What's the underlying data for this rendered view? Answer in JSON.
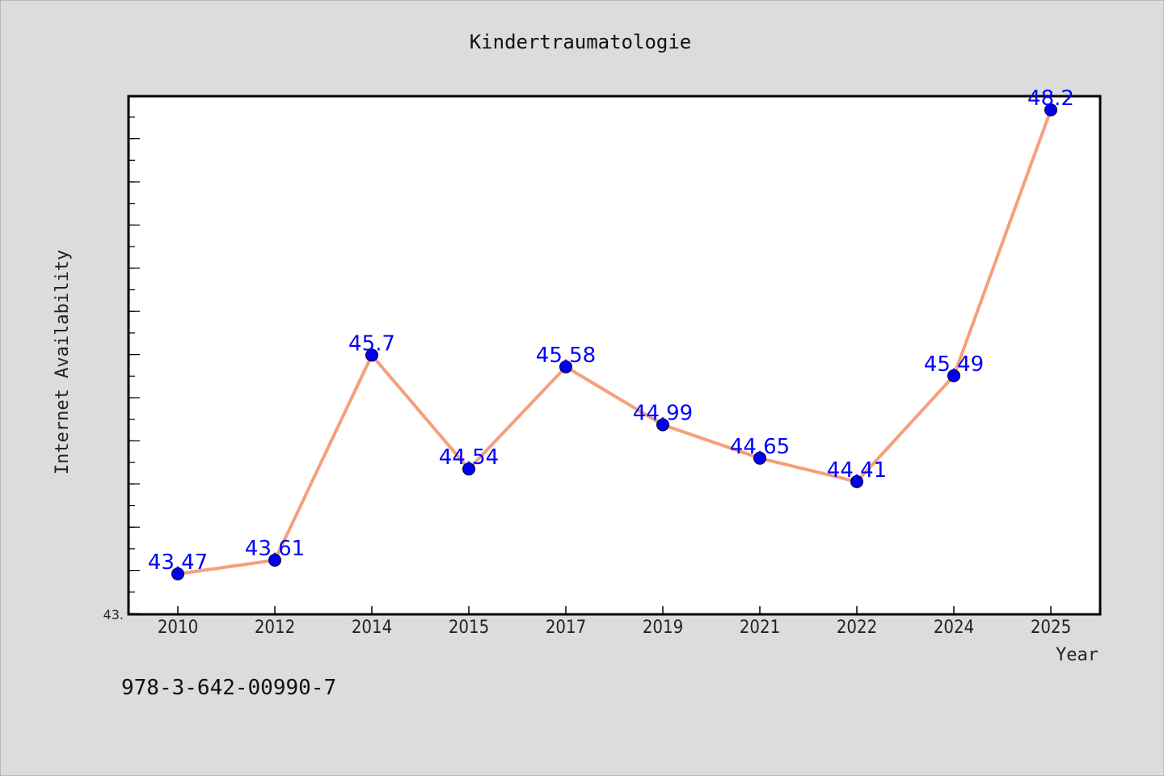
{
  "chart_data": {
    "type": "line",
    "title": "Kindertraumatologie",
    "xlabel": "Year",
    "ylabel": "Internet Availability",
    "categories": [
      "2010",
      "2012",
      "2014",
      "2015",
      "2017",
      "2019",
      "2021",
      "2022",
      "2024",
      "2025"
    ],
    "values": [
      43.47,
      43.61,
      45.7,
      44.54,
      45.58,
      44.99,
      44.65,
      44.41,
      45.49,
      48.2
    ],
    "data_labels": [
      "43.47",
      "43.61",
      "45.7",
      "44.54",
      "45.58",
      "44.99",
      "44.65",
      "44.41",
      "45.49",
      "48.2"
    ],
    "ylim": [
      43.0,
      49.0
    ],
    "y_tick_label": "43.",
    "line_color": "#f5a07a",
    "marker_color": "#0000ee",
    "label_color": "#0000ff",
    "grid": false,
    "legend": "none"
  },
  "footer": {
    "isbn": "978-3-642-00990-7"
  }
}
